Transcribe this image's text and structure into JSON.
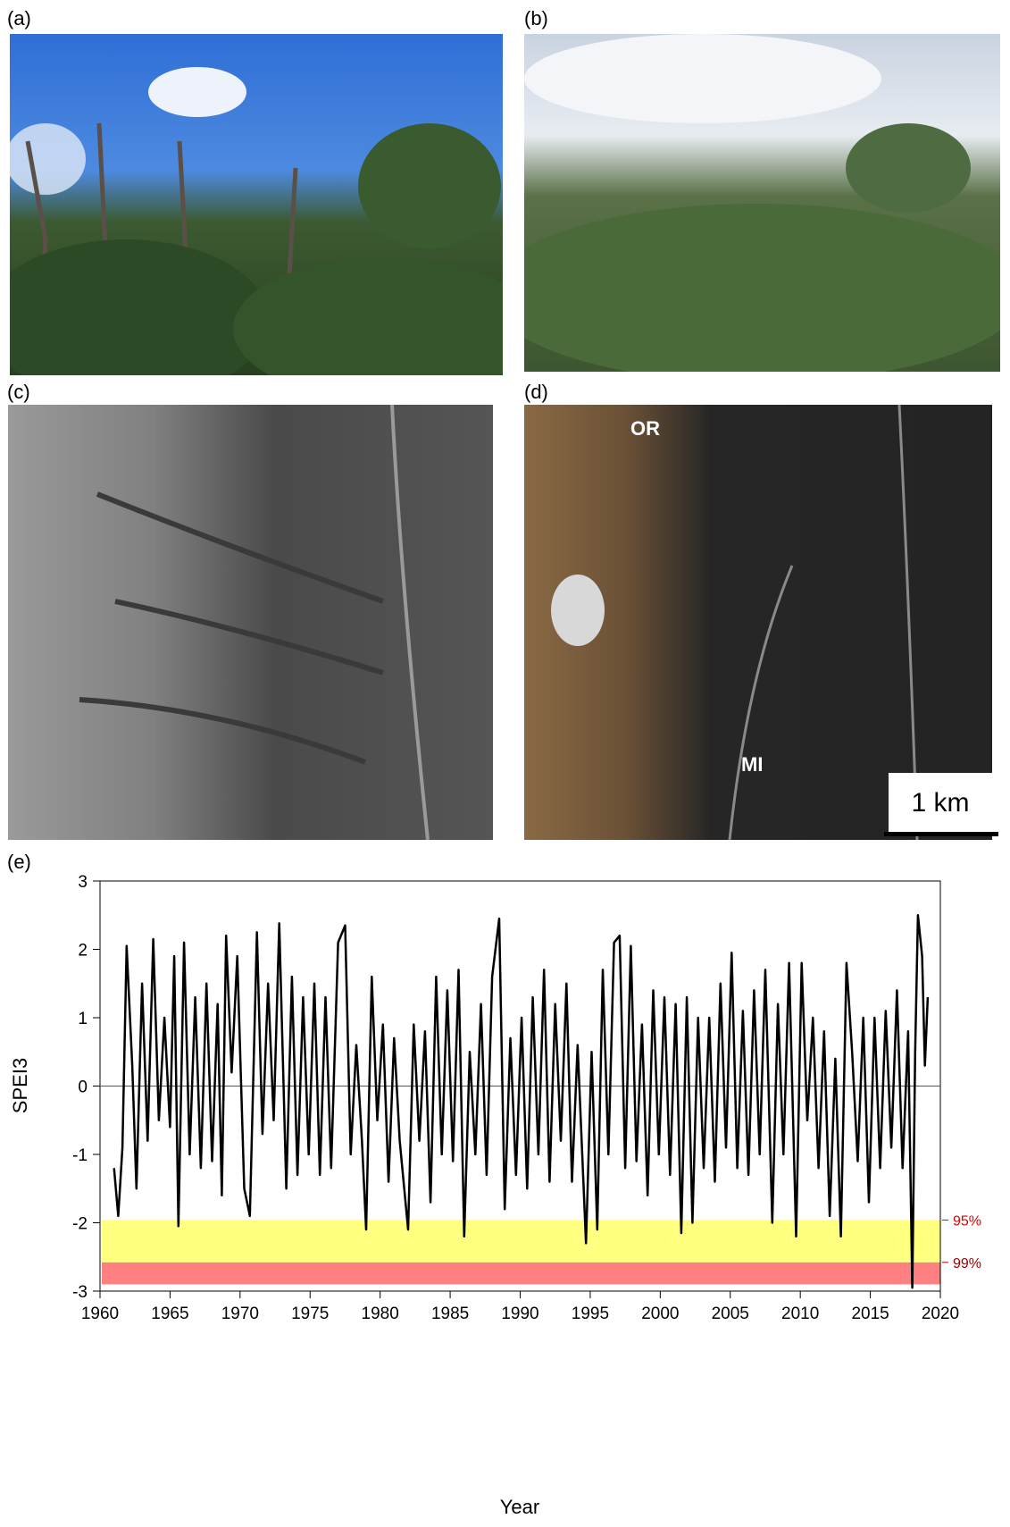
{
  "panels": {
    "a": {
      "label": "(a)"
    },
    "b": {
      "label": "(b)"
    },
    "c": {
      "label": "(c)"
    },
    "d": {
      "label": "(d)",
      "site_top": "OR",
      "site_bottom": "MI",
      "scale_bar": "1 km"
    },
    "e": {
      "label": "(e)"
    }
  },
  "chart_data": {
    "type": "line",
    "ylabel": "SPEI3",
    "xlabel": "Year",
    "xlim": [
      1960,
      2020
    ],
    "ylim": [
      -3,
      3
    ],
    "xticks": [
      1960,
      1965,
      1970,
      1975,
      1980,
      1985,
      1990,
      1995,
      2000,
      2005,
      2010,
      2015,
      2020
    ],
    "yticks": [
      -3,
      -2,
      -1,
      0,
      1,
      2,
      3
    ],
    "hline": 0,
    "bands": [
      {
        "label": "95%",
        "from": -1.96,
        "to": -2.58,
        "color": "#ffff80",
        "label_color": "#e00000"
      },
      {
        "label": "99%",
        "from": -2.58,
        "to": -2.9,
        "color": "#ff8080",
        "label_color": "#a00000"
      }
    ],
    "series": [
      {
        "name": "SPEI3",
        "color": "#000000",
        "x": [
          1961.0,
          1961.3,
          1961.6,
          1961.9,
          1962.3,
          1962.6,
          1963.0,
          1963.4,
          1963.8,
          1964.2,
          1964.6,
          1965.0,
          1965.3,
          1965.6,
          1966.0,
          1966.4,
          1966.8,
          1967.2,
          1967.6,
          1968.0,
          1968.4,
          1968.7,
          1969.0,
          1969.4,
          1969.8,
          1970.3,
          1970.7,
          1971.2,
          1971.6,
          1972.0,
          1972.4,
          1972.8,
          1973.3,
          1973.7,
          1974.1,
          1974.5,
          1974.9,
          1975.3,
          1975.7,
          1976.1,
          1976.5,
          1977.0,
          1977.5,
          1977.9,
          1978.3,
          1978.7,
          1979.0,
          1979.4,
          1979.8,
          1980.2,
          1980.6,
          1981.0,
          1981.4,
          1982.0,
          1982.4,
          1982.8,
          1983.2,
          1983.6,
          1984.0,
          1984.4,
          1984.8,
          1985.2,
          1985.6,
          1986.0,
          1986.4,
          1986.8,
          1987.2,
          1987.6,
          1988.0,
          1988.5,
          1988.9,
          1989.3,
          1989.7,
          1990.1,
          1990.5,
          1990.9,
          1991.3,
          1991.7,
          1992.1,
          1992.5,
          1992.9,
          1993.3,
          1993.7,
          1994.1,
          1994.7,
          1995.1,
          1995.5,
          1995.9,
          1996.3,
          1996.7,
          1997.1,
          1997.5,
          1997.9,
          1998.3,
          1998.7,
          1999.1,
          1999.5,
          1999.9,
          2000.3,
          2000.7,
          2001.1,
          2001.5,
          2001.9,
          2002.3,
          2002.7,
          2003.1,
          2003.5,
          2003.9,
          2004.3,
          2004.7,
          2005.1,
          2005.5,
          2005.9,
          2006.3,
          2006.7,
          2007.1,
          2007.5,
          2008.0,
          2008.4,
          2008.8,
          2009.2,
          2009.7,
          2010.1,
          2010.5,
          2010.9,
          2011.3,
          2011.7,
          2012.1,
          2012.5,
          2012.9,
          2013.3,
          2013.7,
          2014.1,
          2014.5,
          2014.9,
          2015.3,
          2015.7,
          2016.1,
          2016.5,
          2016.9,
          2017.3,
          2017.7,
          2018.0,
          2018.2,
          2018.4,
          2018.7,
          2018.9,
          2019.1
        ],
        "values": [
          -1.2,
          -1.9,
          -0.9,
          2.05,
          0.3,
          -1.5,
          1.5,
          -0.8,
          2.15,
          -0.5,
          1.0,
          -0.6,
          1.9,
          -2.05,
          2.1,
          -1.0,
          1.3,
          -1.2,
          1.5,
          -1.1,
          1.2,
          -1.6,
          2.2,
          0.2,
          1.9,
          -1.5,
          -1.9,
          2.25,
          -0.7,
          1.5,
          -0.5,
          2.38,
          -1.5,
          1.6,
          -1.3,
          1.3,
          -1.0,
          1.5,
          -1.3,
          1.3,
          -1.2,
          2.1,
          2.35,
          -1.0,
          0.6,
          -0.8,
          -2.1,
          1.6,
          -0.5,
          0.9,
          -1.4,
          0.7,
          -0.8,
          -2.1,
          0.9,
          -0.8,
          0.8,
          -1.7,
          1.6,
          -1.0,
          1.4,
          -1.1,
          1.7,
          -2.2,
          0.5,
          -1.0,
          1.2,
          -1.3,
          1.6,
          2.45,
          -1.8,
          0.7,
          -1.3,
          1.0,
          -1.5,
          1.3,
          -1.0,
          1.7,
          -1.4,
          1.2,
          -0.8,
          1.5,
          -1.4,
          0.6,
          -2.3,
          0.5,
          -2.1,
          1.7,
          -1.0,
          2.1,
          2.2,
          -1.2,
          2.05,
          -1.1,
          0.9,
          -1.6,
          1.4,
          -1.0,
          1.3,
          -1.3,
          1.2,
          -2.15,
          1.3,
          -2.0,
          1.0,
          -1.2,
          1.0,
          -1.4,
          1.5,
          -0.9,
          1.95,
          -1.2,
          1.1,
          -1.3,
          1.4,
          -1.0,
          1.7,
          -2.0,
          1.2,
          -1.0,
          1.8,
          -2.2,
          1.8,
          -0.5,
          1.0,
          -1.2,
          0.8,
          -1.9,
          0.4,
          -2.2,
          1.8,
          0.5,
          -1.1,
          1.0,
          -1.7,
          1.0,
          -1.2,
          1.1,
          -0.9,
          1.4,
          -1.2,
          0.8,
          -2.95,
          0.5,
          2.5,
          1.9,
          0.3,
          1.3
        ]
      }
    ]
  }
}
